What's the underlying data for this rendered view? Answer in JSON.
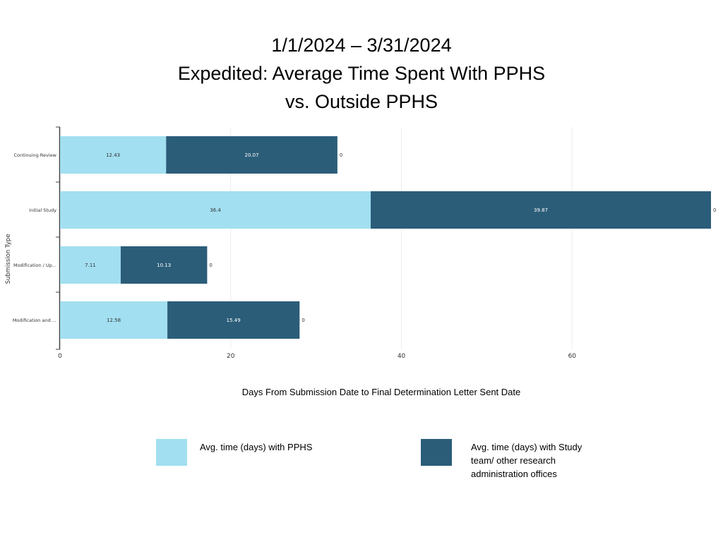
{
  "title_lines": [
    "1/1/2024 – 3/31/2024",
    "Expedited: Average Time Spent With PPHS",
    "vs. Outside PPHS"
  ],
  "chart_data": {
    "type": "bar",
    "orientation": "horizontal",
    "stacked": true,
    "categories": [
      "Continuing Review",
      "Initial Study",
      "Modification / Up...",
      "Modification and ..."
    ],
    "series": [
      {
        "name": "Avg. time (days) with PPHS",
        "color": "#a2dff0",
        "values": [
          12.43,
          36.4,
          7.11,
          12.58
        ]
      },
      {
        "name": "Avg. time (days) with Study team/ other research administration offices",
        "color": "#2b5d79",
        "values": [
          20.07,
          39.87,
          10.13,
          15.49
        ]
      },
      {
        "name": "",
        "color": "#777777",
        "values": [
          0,
          0,
          0,
          0
        ]
      }
    ],
    "xlabel": "Days From Submission Date to Final Determination Letter Sent Date",
    "ylabel": "Submission Type",
    "xlim": [
      0,
      76.27
    ],
    "xticks": [
      0,
      20,
      40,
      60
    ],
    "grid": true,
    "legend_position": "bottom"
  },
  "legend": [
    {
      "label": "Avg. time (days) with PPHS",
      "color": "#a2dff0"
    },
    {
      "label": "Avg. time (days) with Study team/ other research administration offices",
      "color": "#2b5d79"
    }
  ]
}
